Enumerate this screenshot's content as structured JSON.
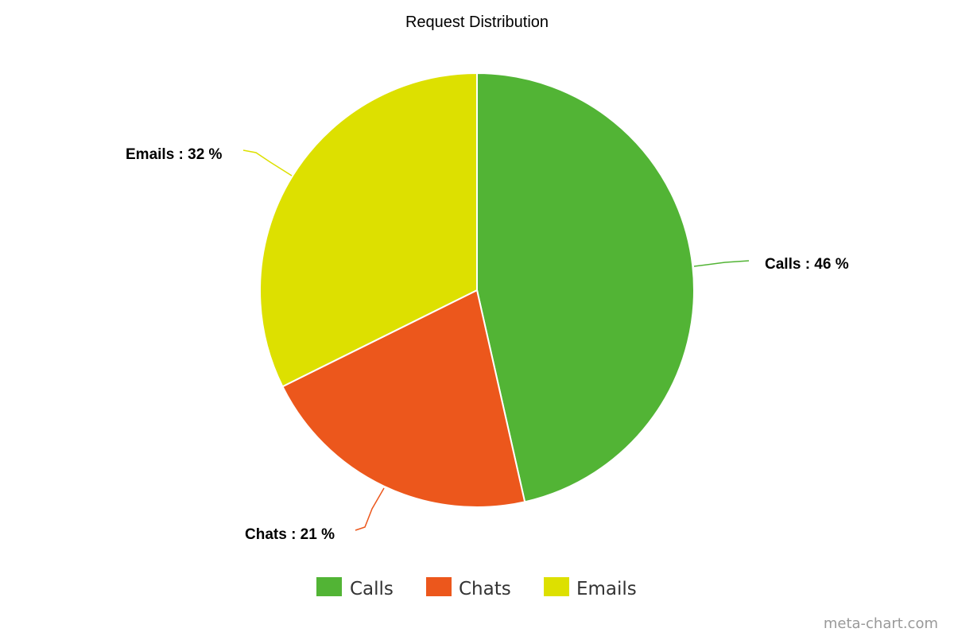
{
  "watermark": "meta-chart.com",
  "chart_data": {
    "type": "pie",
    "title": "Request Distribution",
    "slices": [
      {
        "name": "Calls",
        "value": 46,
        "label": "Calls : 46 %",
        "color": "#52b435"
      },
      {
        "name": "Chats",
        "value": 21,
        "label": "Chats : 21 %",
        "color": "#ec571c"
      },
      {
        "name": "Emails",
        "value": 32,
        "label": "Emails : 32 %",
        "color": "#dde000"
      }
    ],
    "legend": {
      "placement": "bottom-center",
      "items": [
        "Calls",
        "Chats",
        "Emails"
      ]
    }
  }
}
